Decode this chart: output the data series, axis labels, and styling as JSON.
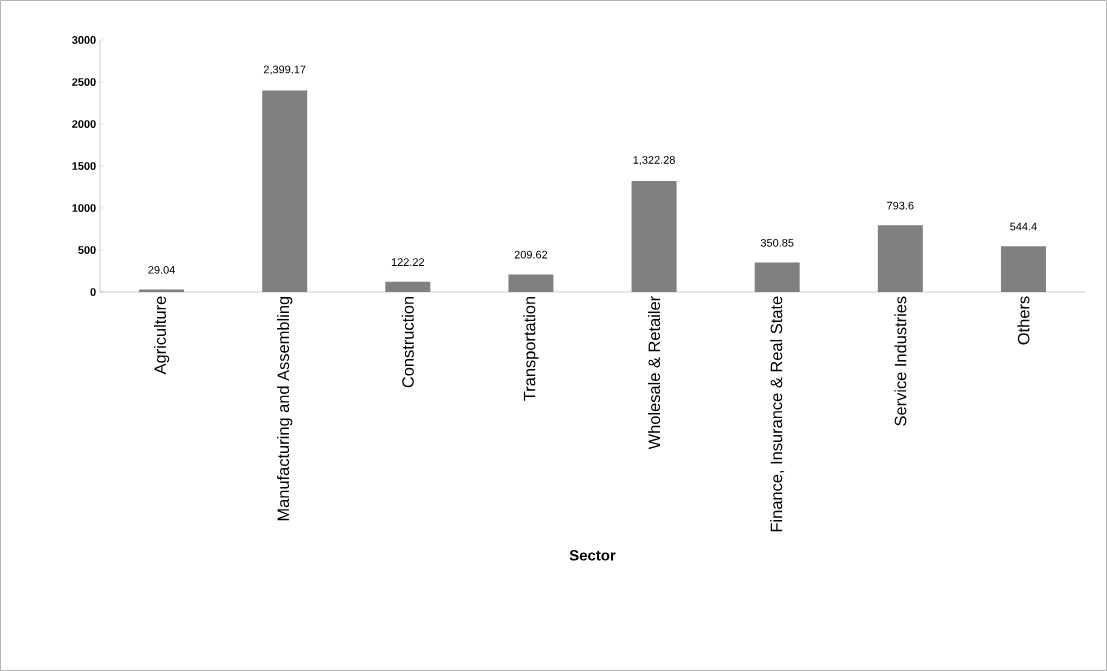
{
  "chart_data": {
    "type": "bar",
    "xlabel": "Sector",
    "categories": [
      "Agriculture",
      "Manufacturing and Assembling",
      "Construction",
      "Transportation",
      "Wholesale & Retailer",
      "Finance, Insurance & Real State",
      "Service Industries",
      "Others"
    ],
    "values": [
      29.04,
      2399.17,
      122.22,
      209.62,
      1322.28,
      350.85,
      793.6,
      544.4
    ],
    "value_labels": [
      "29.04",
      "2,399.17",
      "122.22",
      "209.62",
      "1,322.28",
      "350.85",
      "793.6",
      "544.4"
    ],
    "color": "#808080",
    "ylim": [
      0,
      3000
    ],
    "yticks": [
      0,
      500,
      1000,
      1500,
      2000,
      2500,
      3000
    ],
    "grid": false
  }
}
